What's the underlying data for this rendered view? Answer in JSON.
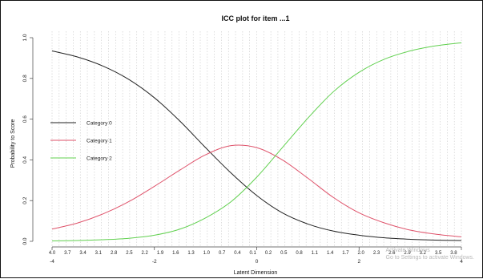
{
  "chart_data": {
    "type": "line",
    "title": "ICC plot for item ...1",
    "xlabel": "Latent Dimension",
    "ylabel": "Probability to Score",
    "xlim": [
      -4,
      4
    ],
    "ylim": [
      0,
      1
    ],
    "x_ticks": [
      -4,
      -2,
      0,
      2,
      4
    ],
    "y_ticks": [
      0.0,
      0.2,
      0.4,
      0.6,
      0.8,
      1.0
    ],
    "y_tick_labels": [
      "0.0",
      "0.2",
      "0.4",
      "0.6",
      "0.8",
      "1.0"
    ],
    "minor_tick_labels": [
      "4.0",
      "3.7",
      "3.4",
      "3.1",
      "2.8",
      "2.5",
      "2.2",
      "1.9",
      "1.6",
      "1.3",
      "1.0",
      "0.7",
      "0.4",
      "0.1",
      "0.2",
      "0.5",
      "0.8",
      "1.1",
      "1.4",
      "1.7",
      "2.0",
      "2.3",
      "2.6",
      "2.9",
      "3.2",
      "3.5",
      "3.8"
    ],
    "grid": "vertical dotted lines",
    "legend_position": "left",
    "x": [
      -4.0,
      -3.5,
      -3.0,
      -2.5,
      -2.0,
      -1.5,
      -1.0,
      -0.5,
      0.0,
      0.5,
      1.0,
      1.5,
      2.0,
      2.5,
      3.0,
      3.5,
      4.0
    ],
    "series": [
      {
        "name": "Category 0",
        "color": "#222222",
        "values": [
          0.935,
          0.905,
          0.86,
          0.795,
          0.705,
          0.59,
          0.46,
          0.335,
          0.225,
          0.14,
          0.085,
          0.05,
          0.03,
          0.017,
          0.01,
          0.006,
          0.004
        ]
      },
      {
        "name": "Category 1",
        "color": "#df536b",
        "values": [
          0.06,
          0.09,
          0.135,
          0.195,
          0.27,
          0.35,
          0.425,
          0.47,
          0.46,
          0.4,
          0.31,
          0.215,
          0.14,
          0.09,
          0.055,
          0.035,
          0.022
        ]
      },
      {
        "name": "Category 2",
        "color": "#61d04f",
        "values": [
          0.002,
          0.004,
          0.008,
          0.015,
          0.03,
          0.06,
          0.115,
          0.195,
          0.315,
          0.46,
          0.605,
          0.735,
          0.83,
          0.895,
          0.935,
          0.96,
          0.975
        ]
      }
    ]
  },
  "watermark": {
    "line1": "Activate Windows",
    "line2": "Go to Settings to activate Windows."
  }
}
